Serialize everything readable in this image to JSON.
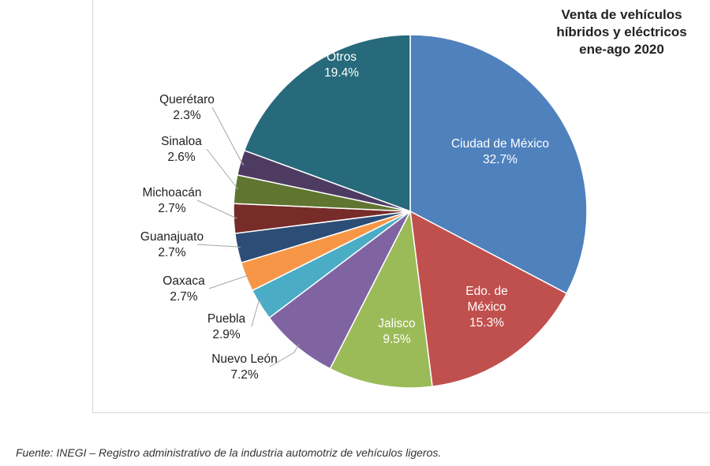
{
  "chart_data": {
    "type": "pie",
    "title_lines": [
      "Venta de vehículos",
      "híbridos y eléctricos",
      "ene-ago 2020"
    ],
    "slices": [
      {
        "label_lines": [
          "Ciudad de México"
        ],
        "pct_label": "32.7%",
        "value": 32.7,
        "color": "#4f81bd"
      },
      {
        "label_lines": [
          "Edo. de",
          "México"
        ],
        "pct_label": "15.3%",
        "value": 15.3,
        "color": "#c0504d"
      },
      {
        "label_lines": [
          "Jalisco"
        ],
        "pct_label": "9.5%",
        "value": 9.5,
        "color": "#9bbb59"
      },
      {
        "label_lines": [
          "Nuevo León"
        ],
        "pct_label": "7.2%",
        "value": 7.2,
        "color": "#8064a2"
      },
      {
        "label_lines": [
          "Puebla"
        ],
        "pct_label": "2.9%",
        "value": 2.9,
        "color": "#4bacc6"
      },
      {
        "label_lines": [
          "Oaxaca"
        ],
        "pct_label": "2.7%",
        "value": 2.7,
        "color": "#f79646"
      },
      {
        "label_lines": [
          "Guanajuato"
        ],
        "pct_label": "2.7%",
        "value": 2.7,
        "color": "#2c4d75"
      },
      {
        "label_lines": [
          "Michoacán"
        ],
        "pct_label": "2.7%",
        "value": 2.7,
        "color": "#772c2a"
      },
      {
        "label_lines": [
          "Sinaloa"
        ],
        "pct_label": "2.6%",
        "value": 2.6,
        "color": "#5f7530"
      },
      {
        "label_lines": [
          "Querétaro"
        ],
        "pct_label": "2.3%",
        "value": 2.3,
        "color": "#4d3b62"
      },
      {
        "label_lines": [
          "Otros"
        ],
        "pct_label": "19.4%",
        "value": 19.4,
        "color": "#276a7c"
      }
    ]
  },
  "source_note": "Fuente: INEGI – Registro administrativo de la industria automotriz de vehículos ligeros."
}
